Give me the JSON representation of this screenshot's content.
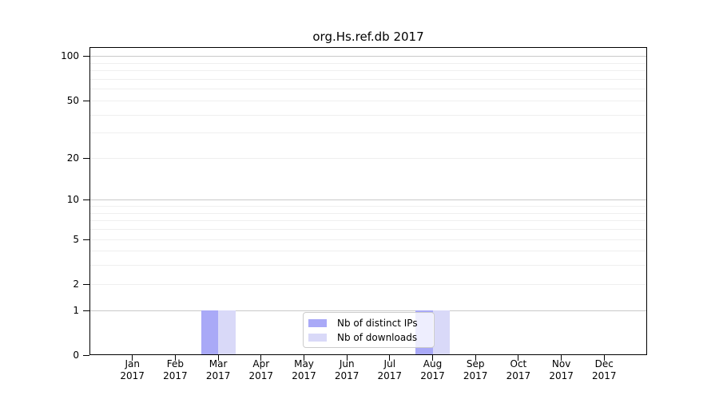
{
  "title": "org.Hs.ref.db 2017",
  "chart_data": {
    "type": "bar",
    "title": "org.Hs.ref.db 2017",
    "categories": [
      "Jan",
      "Feb",
      "Mar",
      "Apr",
      "May",
      "Jun",
      "Jul",
      "Aug",
      "Sep",
      "Oct",
      "Nov",
      "Dec"
    ],
    "category_year": "2017",
    "series": [
      {
        "name": "Nb of distinct IPs",
        "color": "#a9a9f7",
        "values": [
          0,
          0,
          1,
          0,
          0,
          0,
          0,
          1,
          0,
          0,
          0,
          0
        ]
      },
      {
        "name": "Nb of downloads",
        "color": "#d9d9f8",
        "values": [
          0,
          0,
          1,
          0,
          0,
          0,
          0,
          1,
          0,
          0,
          0,
          0
        ]
      }
    ],
    "yscale": "log1p",
    "yticks": [
      0,
      1,
      2,
      5,
      10,
      20,
      50,
      100
    ],
    "ylim": [
      0,
      115
    ],
    "grid": {
      "orientation": "horizontal",
      "major_values": [
        1,
        10,
        100
      ],
      "minor_values": [
        2,
        3,
        4,
        5,
        6,
        7,
        8,
        9,
        20,
        30,
        40,
        50,
        60,
        70,
        80,
        90
      ],
      "major_color": "#c9c9c9",
      "minor_color": "#efefef"
    },
    "legend_position": "lower center",
    "axis_color": "#000000",
    "background_color": "#ffffff"
  }
}
